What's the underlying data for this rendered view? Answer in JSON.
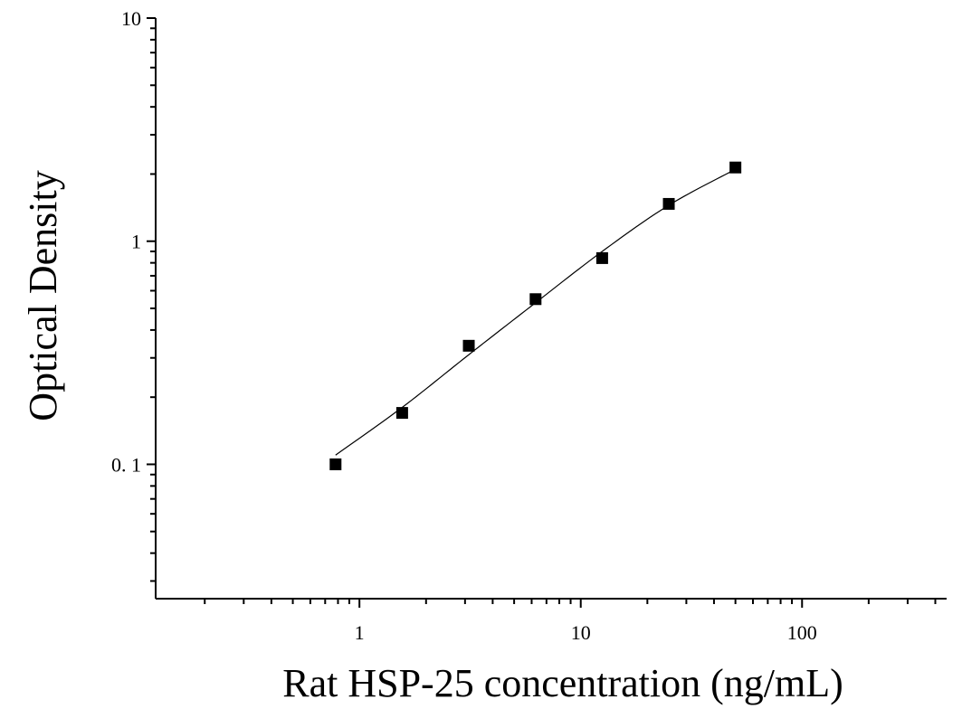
{
  "chart_data": {
    "type": "scatter",
    "title": "",
    "xlabel": "Rat HSP-25 concentration (ng/mL)",
    "ylabel": "Optical Density",
    "x_scale": "log",
    "y_scale": "log",
    "xlim": [
      0.12,
      450
    ],
    "ylim": [
      0.025,
      10
    ],
    "x_tick_labels": [
      {
        "value": 1,
        "label": "1"
      },
      {
        "value": 10,
        "label": "10"
      },
      {
        "value": 100,
        "label": "100"
      }
    ],
    "y_tick_labels": [
      {
        "value": 0.1,
        "label": "0. 1"
      },
      {
        "value": 1,
        "label": "1"
      },
      {
        "value": 10,
        "label": "10"
      }
    ],
    "grid": false,
    "legend": "none",
    "series": [
      {
        "marker": "square",
        "color": "#000000",
        "points": [
          {
            "x": 0.78,
            "y": 0.1
          },
          {
            "x": 1.56,
            "y": 0.17
          },
          {
            "x": 3.12,
            "y": 0.34
          },
          {
            "x": 6.25,
            "y": 0.55
          },
          {
            "x": 12.5,
            "y": 0.84
          },
          {
            "x": 25,
            "y": 1.47
          },
          {
            "x": 50,
            "y": 2.14
          }
        ]
      }
    ],
    "fit_curve": {
      "color": "#000000",
      "points": [
        {
          "x": 0.78,
          "y": 0.11
        },
        {
          "x": 1.56,
          "y": 0.18
        },
        {
          "x": 3.12,
          "y": 0.31
        },
        {
          "x": 6.25,
          "y": 0.53
        },
        {
          "x": 12.5,
          "y": 0.9
        },
        {
          "x": 25,
          "y": 1.45
        },
        {
          "x": 50,
          "y": 2.1
        }
      ]
    }
  }
}
